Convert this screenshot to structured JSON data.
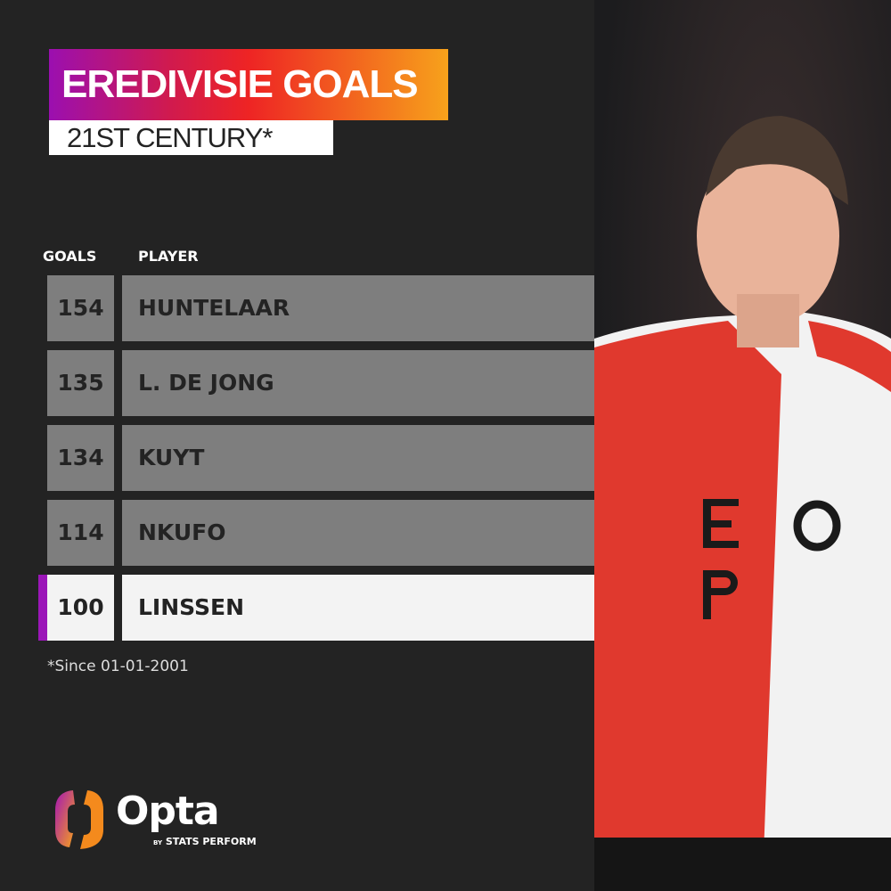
{
  "header": {
    "title": "EREDIVISIE GOALS",
    "subtitle": "21ST CENTURY*"
  },
  "chart_data": {
    "type": "table",
    "title": "EREDIVISIE GOALS",
    "subtitle": "21ST CENTURY*",
    "columns": [
      "GOALS",
      "PLAYER"
    ],
    "rows": [
      {
        "goals": "154",
        "player": "HUNTELAAR"
      },
      {
        "goals": "135",
        "player": "L. DE JONG"
      },
      {
        "goals": "134",
        "player": "KUYT"
      },
      {
        "goals": "114",
        "player": "NKUFO"
      },
      {
        "goals": "100",
        "player": "LINSSEN",
        "highlighted": true
      }
    ],
    "footnote": "*Since 01-01-2001"
  },
  "brand": {
    "name": "Opta",
    "by": "BY",
    "tagline": "STATS PERFORM"
  },
  "colors": {
    "background": "#232323",
    "row": "#7e7e7e",
    "highlight_row": "#f3f3f3",
    "highlight_bar": "#9b16b8",
    "gradient": [
      "#9b0fb0",
      "#ee2424",
      "#f7a21b"
    ]
  }
}
